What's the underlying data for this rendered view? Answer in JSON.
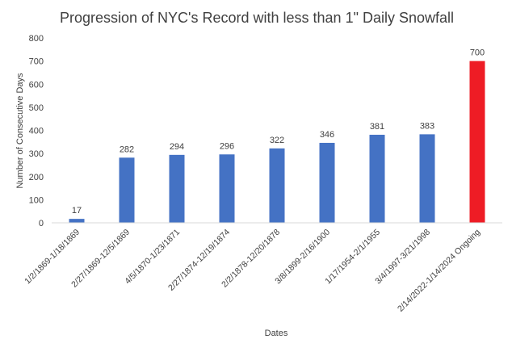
{
  "chart_data": {
    "type": "bar",
    "title": "Progression of NYC's Record with less than 1\" Daily Snowfall",
    "xlabel": "Dates",
    "ylabel": "Number of Consecutive Days",
    "ylim": [
      0,
      800
    ],
    "yticks": [
      0,
      100,
      200,
      300,
      400,
      500,
      600,
      700,
      800
    ],
    "grid": false,
    "legend": "none",
    "categories": [
      "1/2/1869-1/18/1869",
      "2/27/1869-12/5/1869",
      "4/5/1870-1/23/1871",
      "2/27/1874-12/19/1874",
      "2/2/1878-12/20/1878",
      "3/8/1899-2/16/1900",
      "1/17/1954-2/1/1955",
      "3/4/1997-3/21/1998",
      "2/14/2022-1/14/2024 Ongoing"
    ],
    "values": [
      17,
      282,
      294,
      296,
      322,
      346,
      381,
      383,
      700
    ],
    "data_labels": [
      "17",
      "282",
      "294",
      "296",
      "322",
      "346",
      "381",
      "383",
      "700"
    ],
    "colors": {
      "default_bar": "#4472C4",
      "highlight_bar": "#EE1C25",
      "axis": "#D9D9D9",
      "text": "#404040",
      "title": "#404040"
    },
    "highlight_index": 8
  }
}
